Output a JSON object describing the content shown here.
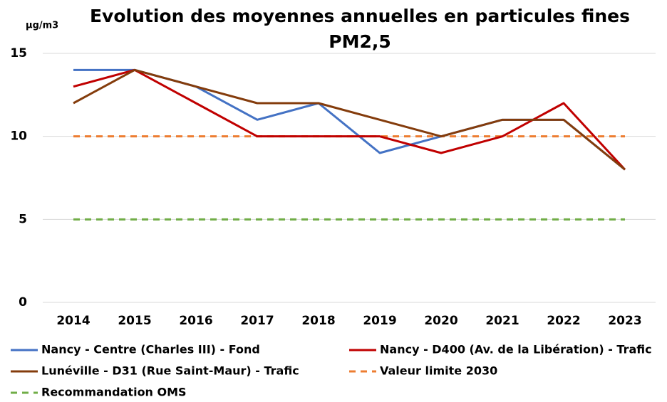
{
  "chart_data": {
    "type": "line",
    "title": [
      "Evolution des moyennes annuelles en particules fines",
      "PM2,5"
    ],
    "y_unit": "µg/m3",
    "categories": [
      "2014",
      "2015",
      "2016",
      "2017",
      "2018",
      "2019",
      "2020",
      "2021",
      "2022",
      "2023"
    ],
    "series": [
      {
        "name": "Nancy  - Centre (Charles III) - Fond",
        "color": "#4472c4",
        "dash": false,
        "values": [
          14,
          14,
          13,
          11,
          12,
          9,
          10,
          11,
          11,
          8
        ]
      },
      {
        "name": "Nancy - D400 (Av. de la Libération) - Trafic",
        "color": "#c00000",
        "dash": false,
        "values": [
          13,
          14,
          12,
          10,
          10,
          10,
          9,
          10,
          12,
          8
        ]
      },
      {
        "name": "Lunéville - D31 (Rue Saint-Maur) - Trafic",
        "color": "#843c0c",
        "dash": false,
        "values": [
          12,
          14,
          13,
          12,
          12,
          11,
          10,
          11,
          11,
          8
        ]
      },
      {
        "name": "Valeur limite 2030",
        "color": "#ed7d31",
        "dash": true,
        "values": [
          10,
          10,
          10,
          10,
          10,
          10,
          10,
          10,
          10,
          10
        ]
      },
      {
        "name": "Recommandation OMS",
        "color": "#70ad47",
        "dash": true,
        "values": [
          5,
          5,
          5,
          5,
          5,
          5,
          5,
          5,
          5,
          5
        ]
      }
    ],
    "ylim": [
      0,
      15
    ],
    "yticks": [
      0,
      5,
      10,
      15
    ],
    "grid": true,
    "legend": "bottom"
  }
}
